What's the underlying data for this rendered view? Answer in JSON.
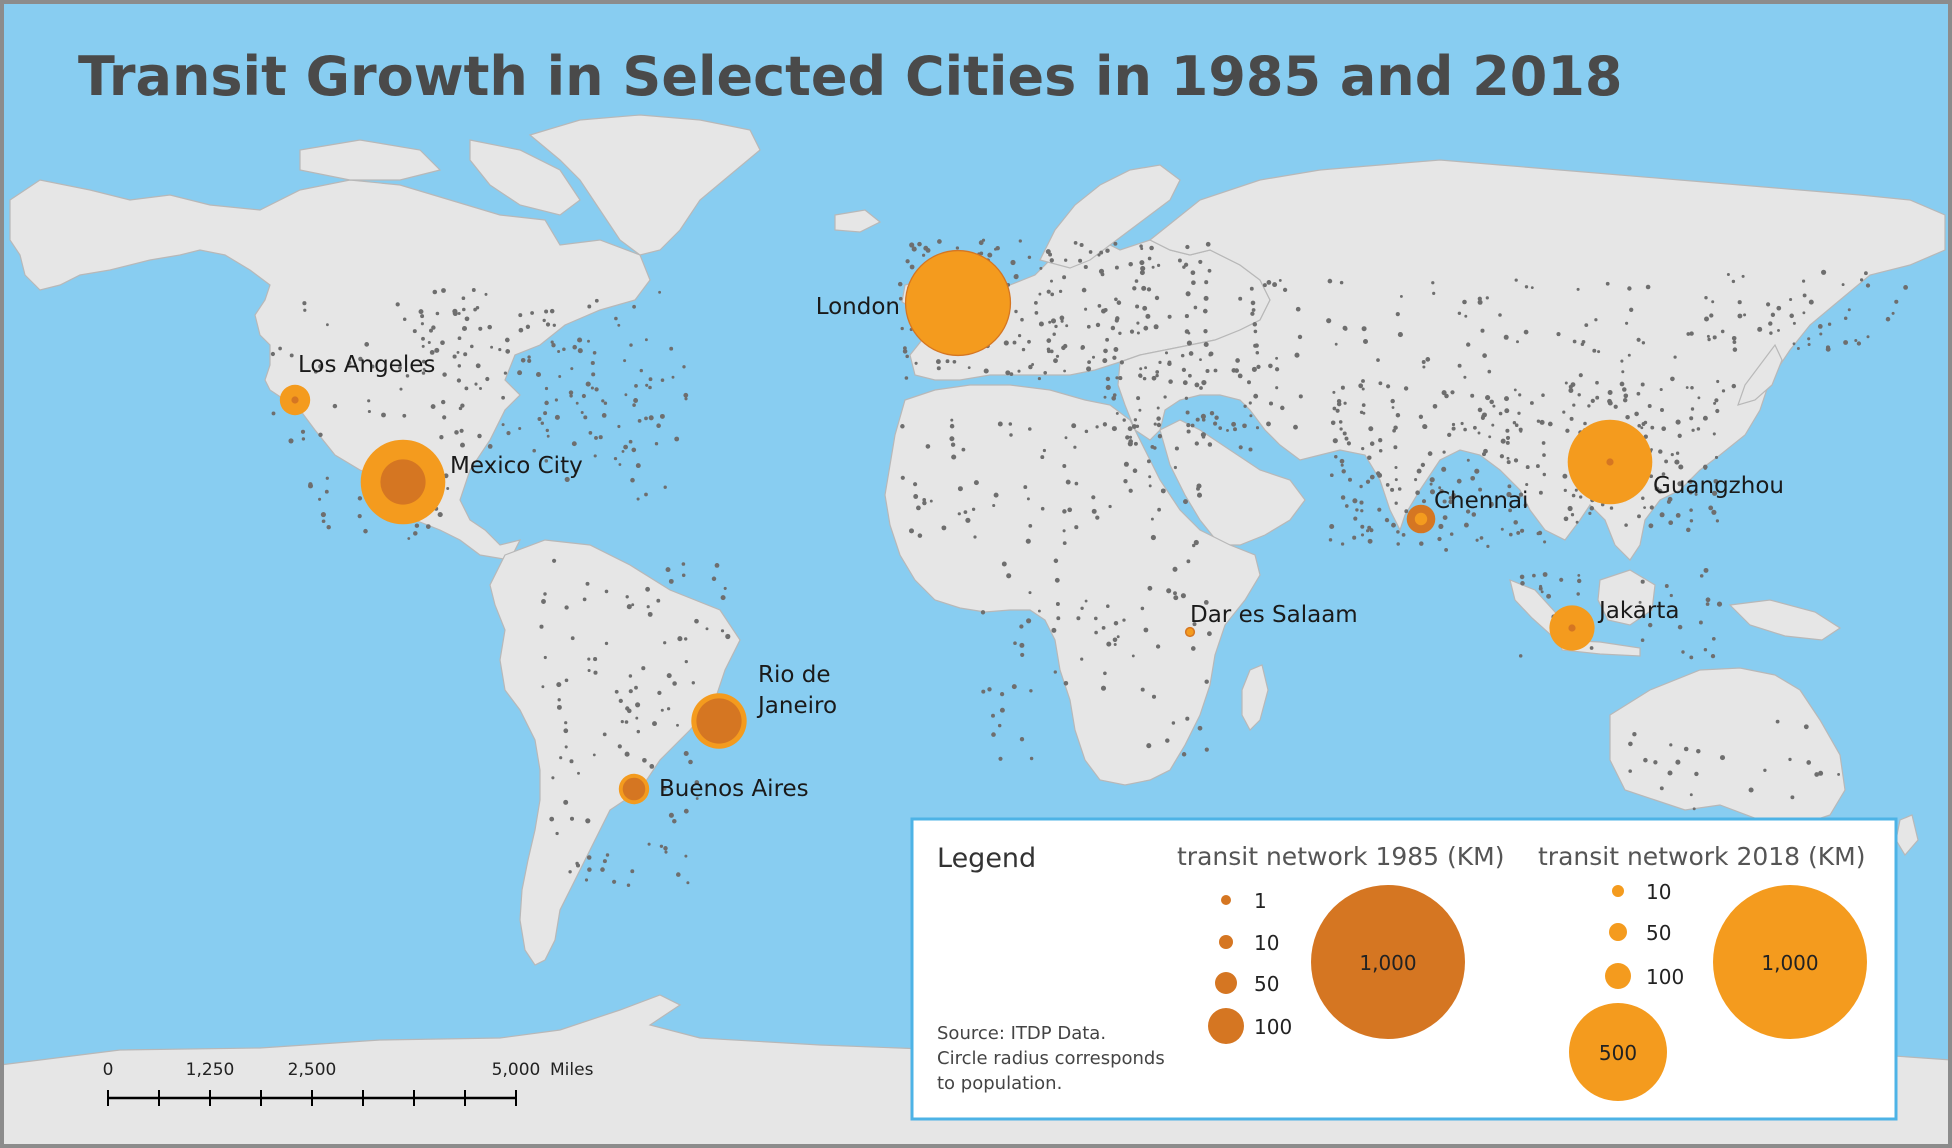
{
  "title": "Transit Growth in Selected Cities in 1985 and 2018",
  "colors": {
    "ocean": "#88cdf1",
    "land": "#e6e6e6",
    "land_stroke": "#b8b8b8",
    "city_dot": "#6e6e6e",
    "transit_1985": "#d57622",
    "transit_2018": "#f49b1e",
    "legend_border": "#4db3e6"
  },
  "cities": [
    {
      "name": "Los Angeles",
      "km_1985": 5,
      "km_2018": 90
    },
    {
      "name": "Mexico City",
      "km_1985": 200,
      "km_2018": 700
    },
    {
      "name": "London",
      "km_1985": 1100,
      "km_2018": 1050
    },
    {
      "name": "Rio de Janeiro",
      "km_1985": 200,
      "km_2018": 300
    },
    {
      "name": "Buenos Aires",
      "km_1985": 50,
      "km_2018": 90
    },
    {
      "name": "Dar es Salaam",
      "km_1985": 10,
      "km_2018": 5
    },
    {
      "name": "Chennai",
      "km_1985": 80,
      "km_2018": 15
    },
    {
      "name": "Guangzhou",
      "km_1985": 5,
      "km_2018": 700
    },
    {
      "name": "Jakarta",
      "km_1985": 5,
      "km_2018": 200
    }
  ],
  "legend": {
    "title": "Legend",
    "heading_1985": "transit network 1985 (KM)",
    "heading_2018": "transit network 2018 (KM)",
    "values_1985": [
      "1",
      "10",
      "50",
      "100",
      "1,000"
    ],
    "values_2018": [
      "10",
      "50",
      "100",
      "500",
      "1,000"
    ],
    "source": [
      "Source: ITDP Data.",
      "Circle radius corresponds",
      "to population."
    ]
  },
  "scale_bar": {
    "labels": [
      "0",
      "1,250",
      "2,500",
      "5,000"
    ],
    "unit": "Miles"
  }
}
